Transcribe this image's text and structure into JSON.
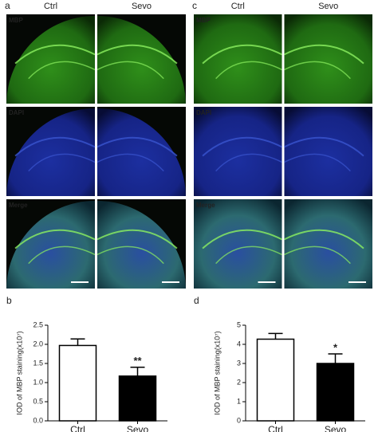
{
  "figures": [
    {
      "label": "a",
      "columns": [
        "Ctrl",
        "Sevo"
      ],
      "rows": [
        "MBP",
        "DAPI",
        "Merge"
      ]
    },
    {
      "label": "c",
      "columns": [
        "Ctrl",
        "Sevo"
      ],
      "rows": [
        "MBP",
        "DAPI",
        "Merge"
      ]
    }
  ],
  "chart_data": [
    {
      "type": "bar",
      "panel": "b",
      "y_label": "IOD of MBP staining(x10⁷)",
      "categories": [
        "Ctrl",
        "Sevo"
      ],
      "values": [
        1.97,
        1.17
      ],
      "errors": [
        0.17,
        0.23
      ],
      "colors": [
        "#ffffff",
        "#000000"
      ],
      "significance": [
        null,
        "**"
      ],
      "ylim": [
        0,
        2.5
      ],
      "yticks": [
        {
          "value": 0,
          "label": "0.0"
        },
        0.5,
        {
          "value": 1,
          "label": "1.0"
        },
        1.5,
        {
          "value": 2,
          "label": "2.0"
        },
        2.5
      ]
    },
    {
      "type": "bar",
      "panel": "d",
      "y_label": "IOD of MBP staining(x10⁷)",
      "categories": [
        "Ctrl",
        "Sevo"
      ],
      "values": [
        4.27,
        3.0
      ],
      "errors": [
        0.3,
        0.5
      ],
      "colors": [
        "#ffffff",
        "#000000"
      ],
      "significance": [
        null,
        "*"
      ],
      "ylim": [
        0,
        5
      ],
      "yticks": [
        0,
        1,
        2,
        3,
        4,
        5
      ]
    }
  ]
}
